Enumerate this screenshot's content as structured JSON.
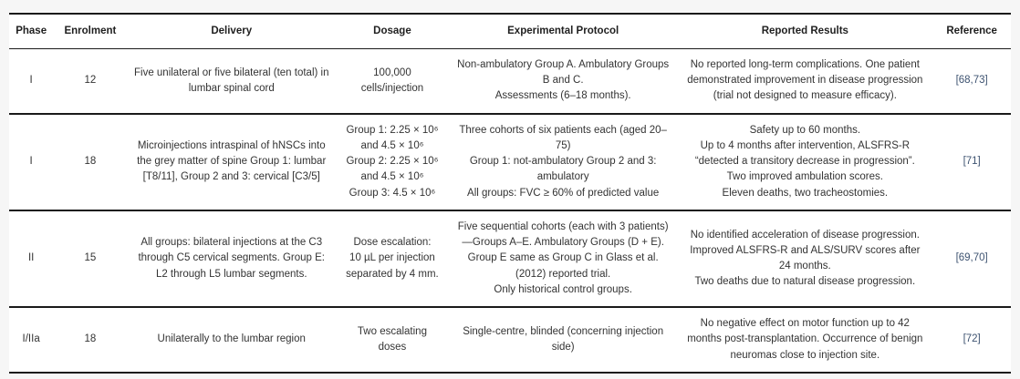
{
  "colors": {
    "page_bg": "#f6f6f6",
    "table_bg": "#ffffff",
    "rule": "#1a1a1a",
    "header_text": "#1f1f1f",
    "body_text": "#333333",
    "reference_link": "#3e5371"
  },
  "table": {
    "columns": [
      {
        "label": "Phase"
      },
      {
        "label": "Enrolment"
      },
      {
        "label": "Delivery"
      },
      {
        "label": "Dosage"
      },
      {
        "label": "Experimental Protocol"
      },
      {
        "label": "Reported Results"
      },
      {
        "label": "Reference"
      }
    ],
    "rows": [
      {
        "phase": "I",
        "enrolment": "12",
        "delivery": "Five unilateral or five bilateral (ten total) in lumbar spinal cord",
        "dosage": "100,000\ncells/injection",
        "protocol": "Non-ambulatory Group A. Ambulatory Groups B and C.\nAssessments (6–18 months).",
        "results": "No reported long-term complications. One patient demonstrated improvement in disease progression (trial not designed to measure efficacy).",
        "reference": "[68,73]"
      },
      {
        "phase": "I",
        "enrolment": "18",
        "delivery": "Microinjections intraspinal of hNSCs into the grey matter of spine Group 1: lumbar [T8/11], Group 2 and 3: cervical [C3/5]",
        "dosage": "Group 1: 2.25 × 10⁶\nand 4.5 × 10⁶\nGroup 2: 2.25 × 10⁶\nand 4.5 × 10⁶\nGroup 3: 4.5 × 10⁶",
        "protocol": "Three cohorts of six patients each (aged 20–75)\nGroup 1: not-ambulatory Group 2 and 3: ambulatory\nAll groups: FVC ≥ 60% of predicted value",
        "results": "Safety up to 60 months.\nUp to 4 months after intervention, ALSFRS-R “detected a transitory decrease in progression”.\nTwo improved ambulation scores.\nEleven deaths, two tracheostomies.",
        "reference": "[71]"
      },
      {
        "phase": "II",
        "enrolment": "15",
        "delivery": "All groups: bilateral injections at the C3 through C5 cervical segments. Group E: L2 through L5 lumbar segments.",
        "dosage": "Dose escalation:\n10 µL per injection\nseparated by 4 mm.",
        "protocol": "Five sequential cohorts (each with 3 patients)—Groups A–E. Ambulatory Groups (D + E). Group E same as Group C in Glass et al. (2012) reported trial.\nOnly historical control groups.",
        "results": "No identified acceleration of disease progression.\nImproved ALSFRS-R and ALS/SURV scores after 24 months.\nTwo deaths due to natural disease progression.",
        "reference": "[69,70]"
      },
      {
        "phase": "I/IIa",
        "enrolment": "18",
        "delivery": "Unilaterally to the lumbar region",
        "dosage": "Two escalating\ndoses",
        "protocol": "Single-centre, blinded (concerning injection side)",
        "results": "No negative effect on motor function up to 42 months post-transplantation. Occurrence of benign neuromas close to injection site.",
        "reference": "[72]"
      }
    ]
  }
}
